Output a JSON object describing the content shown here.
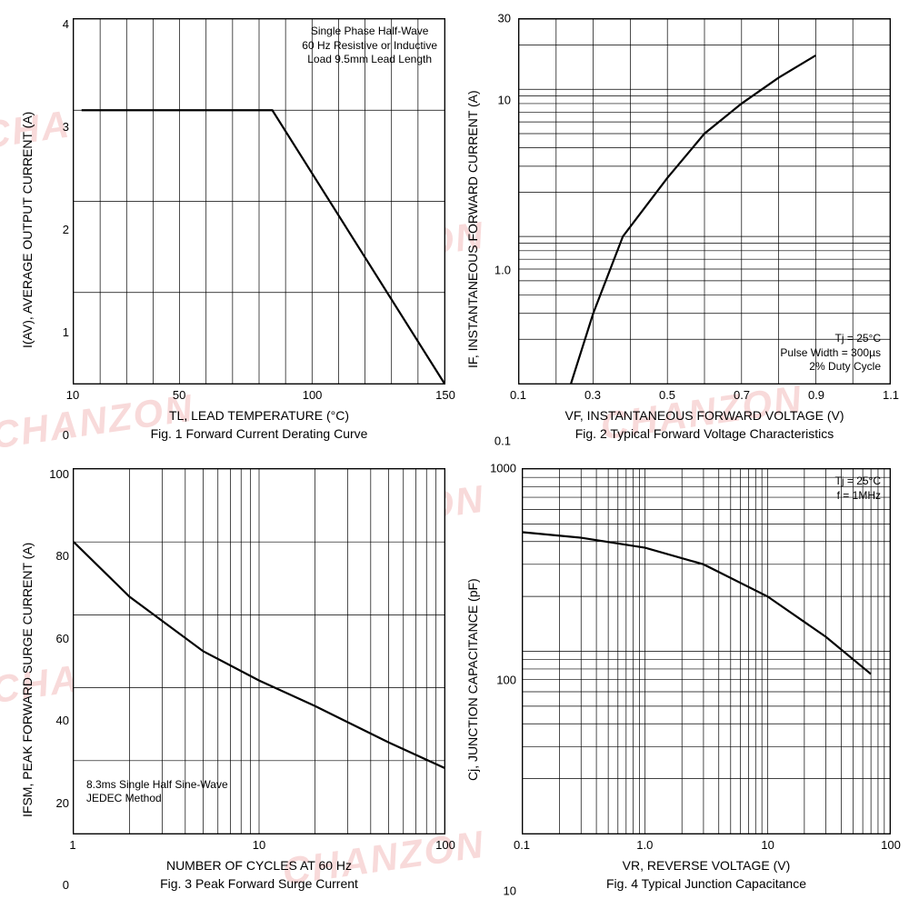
{
  "watermark_text": "CHANZON",
  "watermark_color": "#f8dada",
  "fig1": {
    "type": "line",
    "ylabel": "I(AV), AVERAGE OUTPUT CURRENT (A)",
    "xlabel": "TL, LEAD TEMPERATURE (°C)",
    "caption": "Fig. 1  Forward Current Derating Curve",
    "annotation": "Single Phase Half-Wave\n60 Hz Resistive or Inductive\nLoad 9.5mm Lead Length",
    "xlim": [
      10,
      150
    ],
    "ylim": [
      0,
      4
    ],
    "xticks": [
      "10",
      "50",
      "100",
      "150"
    ],
    "yticks": [
      "0",
      "1",
      "2",
      "3",
      "4"
    ],
    "grid_x_step": 10,
    "grid_y_step": 1,
    "curve": [
      [
        13,
        3.0
      ],
      [
        85,
        3.0
      ],
      [
        150,
        0
      ]
    ],
    "curve_color": "#000000",
    "stroke_width": 2.2,
    "grid_color": "#000000",
    "background": "#ffffff",
    "font_size": 14
  },
  "fig2": {
    "type": "semilogy",
    "ylabel": "IF, INSTANTANEOUS FORWARD CURRENT (A)",
    "xlabel": "VF, INSTANTANEOUS FORWARD VOLTAGE (V)",
    "caption": "Fig. 2  Typical Forward Voltage Characteristics",
    "annotation": "Tj =  25°C\nPulse Width =  300µs\n2% Duty Cycle",
    "xlim": [
      0.1,
      1.1
    ],
    "ylim_log": [
      0.1,
      30
    ],
    "log_decades": [
      0.1,
      1,
      10,
      30
    ],
    "xticks": [
      "0.1",
      "0.3",
      "0.5",
      "0.7",
      "0.9",
      "1.1"
    ],
    "yticks": [
      "0.1",
      "1.0",
      "10",
      "30"
    ],
    "grid_x_step": 0.1,
    "curve": [
      [
        0.24,
        0.1
      ],
      [
        0.3,
        0.3
      ],
      [
        0.38,
        1.0
      ],
      [
        0.5,
        2.5
      ],
      [
        0.6,
        5
      ],
      [
        0.7,
        8
      ],
      [
        0.8,
        12
      ],
      [
        0.9,
        17
      ]
    ],
    "curve_color": "#000000",
    "stroke_width": 2.2,
    "grid_color": "#000000",
    "background": "#ffffff",
    "font_size": 14
  },
  "fig3": {
    "type": "semilogx",
    "ylabel": "IFSM, PEAK FORWARD SURGE CURRENT (A)",
    "xlabel": "NUMBER OF CYCLES AT 60 Hz",
    "caption": "Fig. 3  Peak Forward Surge Current",
    "annotation": "8.3ms Single Half Sine-Wave\nJEDEC Method",
    "xlim_log": [
      1,
      100
    ],
    "ylim": [
      0,
      100
    ],
    "xticks": [
      "1",
      "10",
      "100"
    ],
    "yticks": [
      "0",
      "20",
      "40",
      "60",
      "80",
      "100"
    ],
    "grid_y_step": 20,
    "curve": [
      [
        1,
        80
      ],
      [
        2,
        65
      ],
      [
        5,
        50
      ],
      [
        10,
        42
      ],
      [
        20,
        35
      ],
      [
        50,
        25
      ],
      [
        100,
        18
      ]
    ],
    "curve_color": "#000000",
    "stroke_width": 2.2,
    "grid_color": "#000000",
    "background": "#ffffff",
    "font_size": 14
  },
  "fig4": {
    "type": "loglog",
    "ylabel": "Cj, JUNCTION CAPACITANCE (pF)",
    "xlabel": "VR, REVERSE VOLTAGE (V)",
    "caption": "Fig. 4  Typical  Junction Capacitance",
    "annotation": "Tj =  25°C\nf =  1MHz",
    "xlim_log": [
      0.1,
      100
    ],
    "ylim_log": [
      10,
      1000
    ],
    "xticks": [
      "0.1",
      "1.0",
      "10",
      "100"
    ],
    "yticks": [
      "10",
      "100",
      "1000"
    ],
    "curve": [
      [
        0.1,
        450
      ],
      [
        0.3,
        420
      ],
      [
        1,
        370
      ],
      [
        3,
        300
      ],
      [
        10,
        200
      ],
      [
        30,
        120
      ],
      [
        70,
        75
      ]
    ],
    "curve_color": "#000000",
    "stroke_width": 2.2,
    "grid_color": "#000000",
    "background": "#ffffff",
    "font_size": 14
  }
}
